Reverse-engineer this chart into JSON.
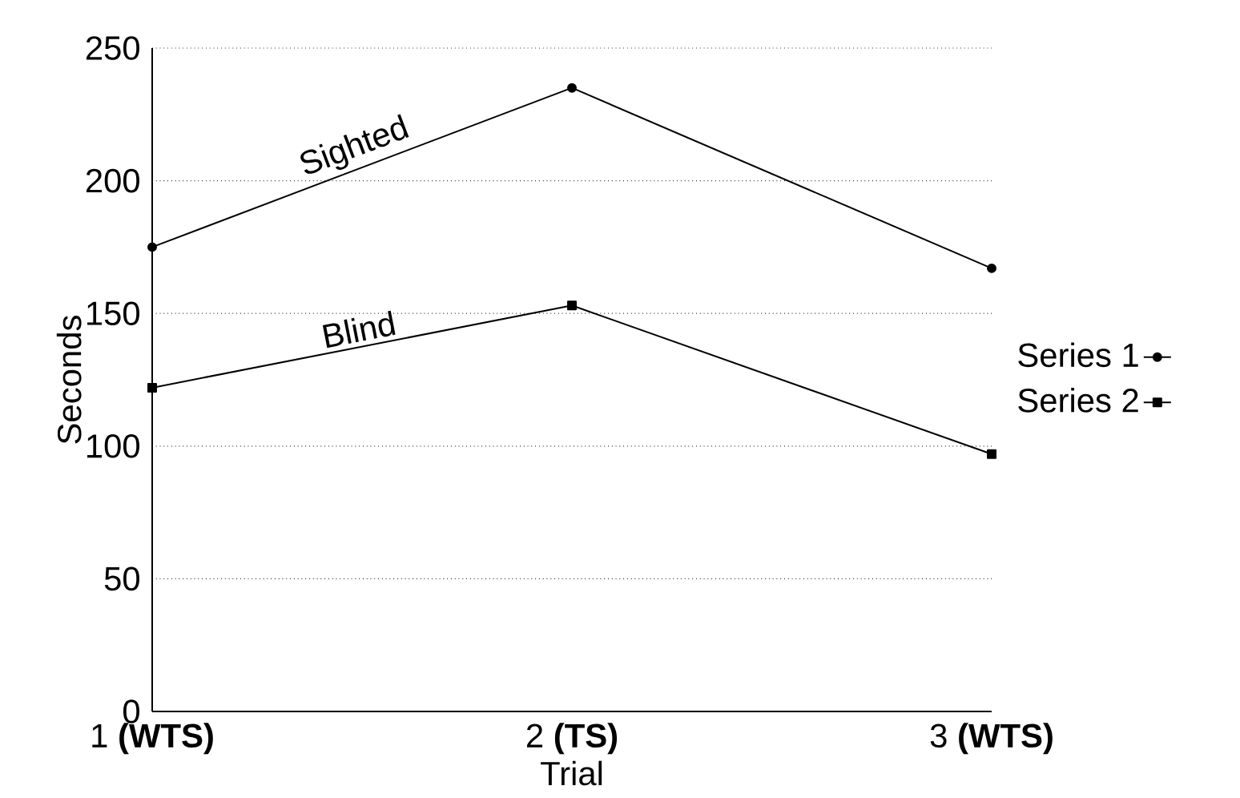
{
  "chart_data": {
    "type": "line",
    "xlabel": "Trial",
    "ylabel": "Seconds",
    "categories": [
      "1 **(WTS)**",
      "2 **(TS)**",
      "3 **(WTS)**"
    ],
    "series": [
      {
        "name": "Series 1",
        "color": "#000000",
        "marker": "circle",
        "values": [
          175,
          235,
          167
        ]
      },
      {
        "name": "Series 2",
        "color": "#000000",
        "marker": "square",
        "values": [
          122,
          153,
          97
        ]
      }
    ],
    "annotations": [
      "Sighted",
      "Blind"
    ],
    "ylim": [
      0,
      250
    ],
    "yticks": [
      0,
      50,
      100,
      150,
      200,
      250
    ],
    "grid": "y",
    "legend": "right",
    "line_style": "solid"
  }
}
